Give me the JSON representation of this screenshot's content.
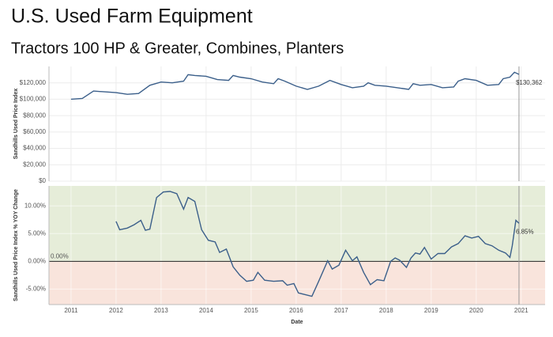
{
  "title": "U.S. Used Farm Equipment",
  "subtitle": "Tractors 100 HP & Greater, Combines, Planters",
  "chart_data": [
    {
      "type": "line",
      "ylabel": "Sandhills Used Price Index",
      "xlim": [
        2010.51,
        2021.53
      ],
      "xticks": [
        2011,
        2012,
        2013,
        2014,
        2015,
        2016,
        2017,
        2018,
        2019,
        2020,
        2021
      ],
      "ylim": [
        0,
        140000
      ],
      "yticks": [
        {
          "value": 0,
          "label": "$0"
        },
        {
          "value": 20000,
          "label": "$20,000"
        },
        {
          "value": 40000,
          "label": "$40,000"
        },
        {
          "value": 60000,
          "label": "$60,000"
        },
        {
          "value": 80000,
          "label": "$80,000"
        },
        {
          "value": 100000,
          "label": "$100,000"
        },
        {
          "value": 120000,
          "label": "$120,000"
        }
      ],
      "grid": true,
      "series": [
        {
          "color": "#3b5f8a",
          "x": [
            2011,
            2011.25,
            2011.5,
            2011.75,
            2012,
            2012.25,
            2012.5,
            2012.75,
            2013,
            2013.25,
            2013.5,
            2013.6,
            2013.75,
            2014,
            2014.25,
            2014.5,
            2014.6,
            2014.75,
            2015,
            2015.25,
            2015.5,
            2015.6,
            2015.75,
            2016,
            2016.25,
            2016.5,
            2016.75,
            2017,
            2017.25,
            2017.5,
            2017.6,
            2017.75,
            2018,
            2018.25,
            2018.5,
            2018.6,
            2018.75,
            2019,
            2019.25,
            2019.5,
            2019.6,
            2019.75,
            2020,
            2020.25,
            2020.5,
            2020.6,
            2020.75,
            2020.85,
            2020.95
          ],
          "values": [
            100000,
            101000,
            110000,
            109000,
            108000,
            106000,
            107000,
            117000,
            121000,
            120000,
            122000,
            130000,
            129000,
            128000,
            124000,
            123000,
            129000,
            127000,
            125000,
            121000,
            119000,
            125000,
            122000,
            116000,
            112000,
            116000,
            123000,
            118000,
            114000,
            116000,
            120000,
            117000,
            116000,
            114000,
            112000,
            119000,
            117000,
            118000,
            114000,
            115000,
            122000,
            125000,
            123000,
            117000,
            118000,
            125000,
            127000,
            133000,
            130362
          ],
          "last_label": "$130,362"
        }
      ]
    },
    {
      "type": "line",
      "ylabel": "Sandhills Used Price Index % YOY Change",
      "xlabel": "Date",
      "xlim": [
        2010.51,
        2021.53
      ],
      "xticks": [
        2011,
        2012,
        2013,
        2014,
        2015,
        2016,
        2017,
        2018,
        2019,
        2020,
        2021
      ],
      "ylim": [
        -7.8,
        13.6
      ],
      "yticks": [
        {
          "value": -5,
          "label": "-5.00%"
        },
        {
          "value": 0,
          "label": "0.00%"
        },
        {
          "value": 5,
          "label": "5.00%"
        },
        {
          "value": 10,
          "label": "10.00%"
        }
      ],
      "grid": true,
      "reference_line": {
        "value": 0,
        "label": "0.00%"
      },
      "bands": {
        "above": "#e6edd9",
        "below": "#f9e4dc"
      },
      "series": [
        {
          "color": "#3b5f8a",
          "x": [
            2012,
            2012.08,
            2012.25,
            2012.4,
            2012.55,
            2012.65,
            2012.75,
            2012.9,
            2013.05,
            2013.2,
            2013.35,
            2013.5,
            2013.6,
            2013.75,
            2013.9,
            2014.05,
            2014.2,
            2014.3,
            2014.45,
            2014.6,
            2014.75,
            2014.9,
            2015.05,
            2015.15,
            2015.3,
            2015.5,
            2015.7,
            2015.8,
            2015.95,
            2016.05,
            2016.2,
            2016.35,
            2016.5,
            2016.7,
            2016.8,
            2016.95,
            2017.1,
            2017.25,
            2017.35,
            2017.5,
            2017.65,
            2017.8,
            2017.95,
            2018.1,
            2018.2,
            2018.3,
            2018.45,
            2018.55,
            2018.65,
            2018.75,
            2018.85,
            2019,
            2019.15,
            2019.3,
            2019.45,
            2019.6,
            2019.75,
            2019.9,
            2020.05,
            2020.2,
            2020.35,
            2020.5,
            2020.65,
            2020.75,
            2020.8,
            2020.88,
            2020.95
          ],
          "values": [
            7.2,
            5.7,
            6.0,
            6.6,
            7.4,
            5.6,
            5.8,
            11.5,
            12.5,
            12.6,
            12.2,
            9.4,
            11.5,
            10.8,
            5.7,
            3.8,
            3.5,
            1.6,
            2.2,
            -1.0,
            -2.5,
            -3.6,
            -3.4,
            -2.0,
            -3.4,
            -3.6,
            -3.5,
            -4.3,
            -4.0,
            -5.7,
            -6.0,
            -6.3,
            -3.6,
            0.1,
            -1.4,
            -0.7,
            2.0,
            0.1,
            0.8,
            -2.0,
            -4.2,
            -3.3,
            -3.5,
            0.0,
            0.6,
            0.2,
            -1.1,
            0.6,
            1.5,
            1.3,
            2.5,
            0.4,
            1.4,
            1.4,
            2.6,
            3.2,
            4.6,
            4.2,
            4.5,
            3.2,
            2.8,
            2.0,
            1.5,
            0.7,
            2.8,
            7.4,
            6.85
          ],
          "last_label": "6.85%"
        }
      ]
    }
  ]
}
